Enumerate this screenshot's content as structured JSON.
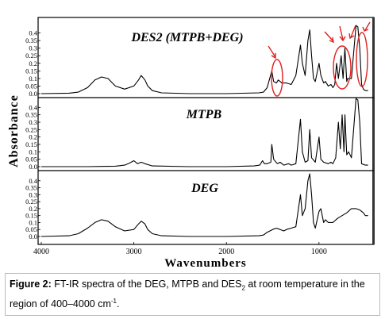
{
  "chart_data": {
    "type": "line",
    "ylabel": "Absorbance",
    "xlabel": "Wavenumbers",
    "x_ticks": [
      "4000",
      "3000",
      "2000",
      "1000"
    ],
    "x_tick_values": [
      4000,
      3000,
      2000,
      1000
    ],
    "xlim": [
      4000,
      450
    ],
    "x_reversed": true,
    "panels": [
      {
        "name": "DES2 (MTPB+DEG)",
        "ylim": [
          0,
          0.45
        ],
        "y_ticks": [
          "0.4",
          "0.35",
          "0.3",
          "0.25",
          "0.2",
          "0.15",
          "0.1",
          "0.05",
          "0.0"
        ],
        "points": [
          [
            4000,
            0
          ],
          [
            3700,
            0.003
          ],
          [
            3600,
            0.01
          ],
          [
            3500,
            0.04
          ],
          [
            3420,
            0.09
          ],
          [
            3350,
            0.11
          ],
          [
            3280,
            0.1
          ],
          [
            3200,
            0.05
          ],
          [
            3100,
            0.03
          ],
          [
            3000,
            0.05
          ],
          [
            2950,
            0.09
          ],
          [
            2920,
            0.12
          ],
          [
            2880,
            0.09
          ],
          [
            2850,
            0.05
          ],
          [
            2800,
            0.02
          ],
          [
            2700,
            0.005
          ],
          [
            2400,
            0
          ],
          [
            2000,
            0
          ],
          [
            1650,
            0.005
          ],
          [
            1600,
            0.01
          ],
          [
            1560,
            0.04
          ],
          [
            1510,
            0.15
          ],
          [
            1490,
            0.08
          ],
          [
            1460,
            0.07
          ],
          [
            1440,
            0.09
          ],
          [
            1400,
            0.07
          ],
          [
            1350,
            0.07
          ],
          [
            1300,
            0.06
          ],
          [
            1250,
            0.12
          ],
          [
            1200,
            0.32
          ],
          [
            1180,
            0.2
          ],
          [
            1150,
            0.12
          ],
          [
            1120,
            0.35
          ],
          [
            1100,
            0.42
          ],
          [
            1080,
            0.25
          ],
          [
            1060,
            0.1
          ],
          [
            1040,
            0.08
          ],
          [
            1000,
            0.2
          ],
          [
            980,
            0.12
          ],
          [
            950,
            0.07
          ],
          [
            930,
            0.08
          ],
          [
            900,
            0.05
          ],
          [
            870,
            0.06
          ],
          [
            850,
            0.04
          ],
          [
            830,
            0.06
          ],
          [
            810,
            0.2
          ],
          [
            790,
            0.1
          ],
          [
            760,
            0.25
          ],
          [
            740,
            0.1
          ],
          [
            720,
            0.3
          ],
          [
            700,
            0.08
          ],
          [
            690,
            0.1
          ],
          [
            650,
            0.1
          ],
          [
            600,
            0.45
          ],
          [
            580,
            0.44
          ],
          [
            560,
            0.3
          ],
          [
            540,
            0.06
          ],
          [
            520,
            0.03
          ],
          [
            500,
            0.02
          ],
          [
            470,
            0.02
          ]
        ]
      },
      {
        "name": "MTPB",
        "ylim": [
          0,
          0.45
        ],
        "y_ticks": [
          "0.4",
          "0.35",
          "0.3",
          "0.25",
          "0.2",
          "0.15",
          "0.1",
          "0.05",
          "0.0"
        ],
        "points": [
          [
            4000,
            0
          ],
          [
            3500,
            0
          ],
          [
            3200,
            0.003
          ],
          [
            3100,
            0.01
          ],
          [
            3060,
            0.02
          ],
          [
            3000,
            0.04
          ],
          [
            2960,
            0.02
          ],
          [
            2920,
            0.03
          ],
          [
            2880,
            0.02
          ],
          [
            2800,
            0.005
          ],
          [
            2400,
            0
          ],
          [
            2000,
            0
          ],
          [
            1700,
            0.005
          ],
          [
            1640,
            0.01
          ],
          [
            1610,
            0.04
          ],
          [
            1590,
            0.02
          ],
          [
            1560,
            0.02
          ],
          [
            1520,
            0.03
          ],
          [
            1510,
            0.15
          ],
          [
            1490,
            0.05
          ],
          [
            1450,
            0.02
          ],
          [
            1420,
            0.03
          ],
          [
            1380,
            0.01
          ],
          [
            1330,
            0.02
          ],
          [
            1300,
            0.01
          ],
          [
            1250,
            0.02
          ],
          [
            1200,
            0.32
          ],
          [
            1180,
            0.1
          ],
          [
            1150,
            0.03
          ],
          [
            1120,
            0.04
          ],
          [
            1100,
            0.25
          ],
          [
            1080,
            0.06
          ],
          [
            1040,
            0.03
          ],
          [
            1000,
            0.2
          ],
          [
            980,
            0.05
          ],
          [
            950,
            0.03
          ],
          [
            900,
            0.02
          ],
          [
            870,
            0.03
          ],
          [
            850,
            0.02
          ],
          [
            820,
            0.06
          ],
          [
            790,
            0.3
          ],
          [
            770,
            0.12
          ],
          [
            750,
            0.35
          ],
          [
            730,
            0.1
          ],
          [
            720,
            0.35
          ],
          [
            700,
            0.08
          ],
          [
            680,
            0.1
          ],
          [
            650,
            0.06
          ],
          [
            600,
            0.46
          ],
          [
            580,
            0.45
          ],
          [
            560,
            0.3
          ],
          [
            540,
            0.02
          ],
          [
            500,
            0.01
          ],
          [
            470,
            0.01
          ]
        ]
      },
      {
        "name": "DEG",
        "ylim": [
          0,
          0.45
        ],
        "y_ticks": [
          "0.4",
          "0.35",
          "0.3",
          "0.25",
          "0.2",
          "0.15",
          "0.1",
          "0.05",
          "0.0"
        ],
        "points": [
          [
            4000,
            0
          ],
          [
            3700,
            0.005
          ],
          [
            3600,
            0.02
          ],
          [
            3500,
            0.06
          ],
          [
            3420,
            0.1
          ],
          [
            3350,
            0.12
          ],
          [
            3280,
            0.11
          ],
          [
            3200,
            0.07
          ],
          [
            3100,
            0.04
          ],
          [
            3000,
            0.05
          ],
          [
            2950,
            0.09
          ],
          [
            2920,
            0.11
          ],
          [
            2880,
            0.09
          ],
          [
            2850,
            0.05
          ],
          [
            2800,
            0.02
          ],
          [
            2700,
            0.005
          ],
          [
            2400,
            0
          ],
          [
            2000,
            0
          ],
          [
            1650,
            0.005
          ],
          [
            1600,
            0.01
          ],
          [
            1560,
            0.03
          ],
          [
            1500,
            0.05
          ],
          [
            1460,
            0.06
          ],
          [
            1420,
            0.05
          ],
          [
            1380,
            0.04
          ],
          [
            1350,
            0.05
          ],
          [
            1300,
            0.06
          ],
          [
            1250,
            0.07
          ],
          [
            1200,
            0.3
          ],
          [
            1180,
            0.15
          ],
          [
            1150,
            0.2
          ],
          [
            1120,
            0.4
          ],
          [
            1100,
            0.45
          ],
          [
            1080,
            0.3
          ],
          [
            1060,
            0.1
          ],
          [
            1040,
            0.06
          ],
          [
            1000,
            0.18
          ],
          [
            980,
            0.2
          ],
          [
            950,
            0.1
          ],
          [
            930,
            0.12
          ],
          [
            900,
            0.1
          ],
          [
            850,
            0.1
          ],
          [
            800,
            0.13
          ],
          [
            750,
            0.15
          ],
          [
            700,
            0.17
          ],
          [
            650,
            0.2
          ],
          [
            600,
            0.2
          ],
          [
            560,
            0.19
          ],
          [
            520,
            0.17
          ],
          [
            500,
            0.15
          ],
          [
            470,
            0.15
          ]
        ]
      }
    ],
    "annotations": "red circles and arrows highlight peaks in DES2 spectrum",
    "grid": false,
    "line_color": "#000000",
    "highlight_color": "#e02020"
  },
  "caption": {
    "prefix": "Figure 2:",
    "text_part1": " FT-IR spectra of the DEG, MTPB and DES",
    "subscript": "2",
    "text_part2": " at room temperature in the region of 400–4000 cm",
    "superscript": "-1",
    "text_end": "."
  }
}
